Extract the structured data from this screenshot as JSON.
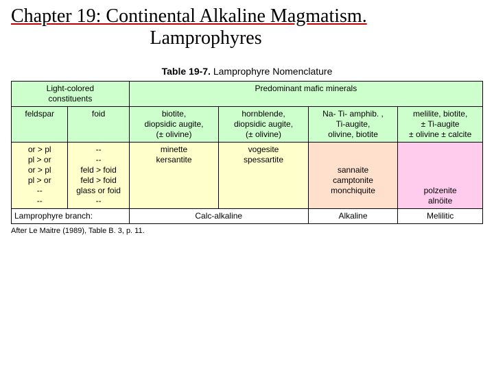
{
  "title": {
    "line1": "Chapter 19: Continental Alkaline Magmatism.",
    "line2": "Lamprophyres"
  },
  "caption": {
    "bold": "Table 19-7.",
    "rest": " Lamprophyre Nomenclature"
  },
  "colors": {
    "header_bg": "#ccffcc",
    "yellow_bg": "#ffffcc",
    "orange_bg": "#ffe0cc",
    "pink_bg": "#ffccee",
    "border": "#000000",
    "title_underline": "#c00000"
  },
  "header": {
    "lightColored": "Light-colored\nconstituents",
    "predominant": "Predominant mafic minerals",
    "feldspar": "feldspar",
    "foid": "foid",
    "col3": "biotite,\ndiopsidic augite,\n(± olivine)",
    "col4": "hornblende,\ndiopsidic augite,\n(± olivine)",
    "col5": "Na- Ti- amphib. ,\nTi-augite,\nolivine, biotite",
    "col6": "melilite, biotite,\n± Ti-augite\n± olivine ± calcite"
  },
  "body": {
    "col1": "or > pl\npl > or\nor > pl\npl > or\n--\n--",
    "col2": "--\n--\nfeld > foid\nfeld > foid\nglass or foid\n--",
    "col3": "minette\nkersantite",
    "col4": "vogesite\nspessartite",
    "col5": "\n\nsannaite\ncamptonite\nmonchiquite",
    "col6": "\n\n\n\npolzenite\nalnöite"
  },
  "branch": {
    "label": "Lamprophyre branch:",
    "c3": "Calc-alkaline",
    "c5": "Alkaline",
    "c6": "Melilitic"
  },
  "footnote": "After Le Maitre (1989), Table B. 3, p. 11."
}
